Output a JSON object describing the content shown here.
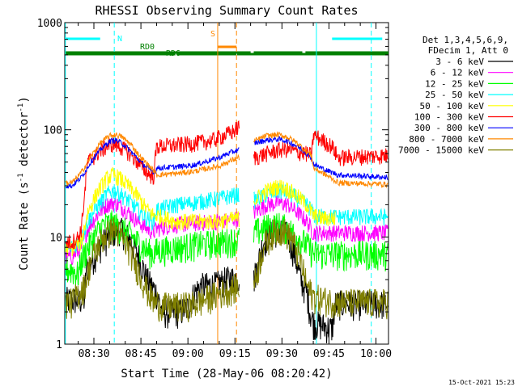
{
  "chart_data": {
    "type": "line",
    "title": "RHESSI Observing Summary Count Rates",
    "xlabel": "Start Time (28-May-06 08:20:42)",
    "ylabel_main": "Count Rate (s",
    "ylabel_sup": "-1",
    "ylabel_tail": " detector",
    "ylabel_sup2": "-1",
    "ylabel_close": ")",
    "y_scale": "log",
    "ylim": [
      1,
      1000
    ],
    "xlim_minutes": [
      20.7,
      124
    ],
    "x_ticks": [
      {
        "label": "08:30",
        "min": 30
      },
      {
        "label": "08:45",
        "min": 45
      },
      {
        "label": "09:00",
        "min": 60
      },
      {
        "label": "09:15",
        "min": 75
      },
      {
        "label": "09:30",
        "min": 90
      },
      {
        "label": "09:45",
        "min": 105
      },
      {
        "label": "10:00",
        "min": 120
      }
    ],
    "y_ticks": [
      {
        "label": "1",
        "value": 1
      },
      {
        "label": "10",
        "value": 10
      },
      {
        "label": "100",
        "value": 100
      },
      {
        "label": "1000",
        "value": 1000
      }
    ],
    "legend_header": [
      "Det 1,3,4,5,6,9,",
      "FDecim 1, Att 0"
    ],
    "footer_timestamp": "15-Oct-2021 15:23",
    "data_gap_min": [
      76.5,
      81
    ],
    "series": [
      {
        "name": "3 - 6 keV",
        "color": "#000000",
        "key": [
          [
            23,
            2.6
          ],
          [
            27,
            2.6
          ],
          [
            27.5,
            5
          ],
          [
            30,
            6.5
          ],
          [
            33,
            9
          ],
          [
            36,
            11
          ],
          [
            38,
            12
          ],
          [
            41,
            10
          ],
          [
            44,
            7
          ],
          [
            47,
            4
          ],
          [
            50,
            3
          ],
          [
            52,
            2
          ],
          [
            57,
            2
          ],
          [
            60,
            2.2
          ],
          [
            62,
            3
          ],
          [
            64,
            3.5
          ],
          [
            69,
            3.6
          ],
          [
            72,
            4
          ],
          [
            76,
            4.2
          ],
          [
            76.5,
            4.2
          ],
          [
            81,
            4
          ],
          [
            84,
            9
          ],
          [
            87,
            11
          ],
          [
            90,
            12
          ],
          [
            92,
            10
          ],
          [
            94,
            7
          ],
          [
            96,
            4
          ],
          [
            98,
            3
          ],
          [
            99,
            2
          ],
          [
            100,
            1.6
          ],
          [
            103,
            1.5
          ],
          [
            106,
            1.4
          ],
          [
            107,
            2.4
          ],
          [
            124,
            2.4
          ]
        ]
      },
      {
        "name": "6 - 12 keV",
        "color": "#ff00ff",
        "key": [
          [
            23,
            6.5
          ],
          [
            26,
            8
          ],
          [
            28,
            12
          ],
          [
            31,
            16
          ],
          [
            34,
            20
          ],
          [
            36,
            21
          ],
          [
            38,
            20
          ],
          [
            41,
            17
          ],
          [
            44,
            14
          ],
          [
            47,
            12
          ],
          [
            49,
            11
          ],
          [
            50,
            12
          ],
          [
            55,
            13
          ],
          [
            62,
            13.5
          ],
          [
            70,
            14
          ],
          [
            76,
            15
          ],
          [
            76.5,
            15
          ],
          [
            81,
            17
          ],
          [
            85,
            20
          ],
          [
            89,
            21
          ],
          [
            92,
            20
          ],
          [
            95,
            17
          ],
          [
            98,
            14
          ],
          [
            100,
            11
          ],
          [
            103,
            11
          ],
          [
            105,
            11
          ],
          [
            107,
            11
          ],
          [
            124,
            11
          ]
        ]
      },
      {
        "name": "12 - 25 keV",
        "color": "#00ff00",
        "key": [
          [
            23,
            5
          ],
          [
            25,
            4.5
          ],
          [
            26,
            6
          ],
          [
            28,
            8
          ],
          [
            31,
            11
          ],
          [
            33,
            13
          ],
          [
            36,
            13.5
          ],
          [
            38,
            12.5
          ],
          [
            41,
            11
          ],
          [
            44,
            9
          ],
          [
            47,
            7.5
          ],
          [
            49,
            7
          ],
          [
            50,
            7.5
          ],
          [
            56,
            8
          ],
          [
            62,
            8.5
          ],
          [
            70,
            9
          ],
          [
            76,
            9.5
          ],
          [
            76.5,
            9.5
          ],
          [
            81,
            11
          ],
          [
            85,
            12.5
          ],
          [
            89,
            13
          ],
          [
            92,
            12
          ],
          [
            95,
            10
          ],
          [
            98,
            8.5
          ],
          [
            100,
            7
          ],
          [
            103,
            7
          ],
          [
            107,
            7
          ],
          [
            124,
            7
          ]
        ]
      },
      {
        "name": "25 - 50 keV",
        "color": "#00ffff",
        "key": [
          [
            23,
            8
          ],
          [
            26,
            9.5
          ],
          [
            28,
            14
          ],
          [
            31,
            19
          ],
          [
            34,
            25
          ],
          [
            36,
            27
          ],
          [
            38,
            26
          ],
          [
            41,
            22
          ],
          [
            44,
            18
          ],
          [
            47,
            15
          ],
          [
            49,
            14
          ],
          [
            50,
            18
          ],
          [
            56,
            20
          ],
          [
            62,
            21
          ],
          [
            70,
            23
          ],
          [
            76,
            25
          ],
          [
            76.5,
            25
          ],
          [
            81,
            22
          ],
          [
            85,
            25
          ],
          [
            89,
            27
          ],
          [
            92,
            26
          ],
          [
            95,
            23
          ],
          [
            98,
            20
          ],
          [
            99.5,
            18
          ],
          [
            100,
            16
          ],
          [
            104,
            15.5
          ],
          [
            108,
            15.5
          ],
          [
            124,
            15.5
          ]
        ]
      },
      {
        "name": "50 - 100 keV",
        "color": "#ffff00",
        "key": [
          [
            23,
            8
          ],
          [
            26,
            9
          ],
          [
            28,
            17
          ],
          [
            31,
            26
          ],
          [
            34,
            35
          ],
          [
            36,
            38
          ],
          [
            38,
            36
          ],
          [
            41,
            30
          ],
          [
            44,
            24
          ],
          [
            47,
            18
          ],
          [
            49,
            16
          ],
          [
            50,
            16
          ],
          [
            56,
            14
          ],
          [
            62,
            14
          ],
          [
            70,
            14
          ],
          [
            76,
            15
          ],
          [
            76.5,
            15
          ],
          [
            81,
            22
          ],
          [
            85,
            27
          ],
          [
            89,
            30
          ],
          [
            92,
            28
          ],
          [
            95,
            24
          ],
          [
            98,
            20
          ],
          [
            100,
            16
          ],
          [
            103,
            15
          ],
          [
            107,
            15
          ]
        ]
      },
      {
        "name": "100 - 300 keV",
        "color": "#ff0000",
        "key": [
          [
            23,
            9
          ],
          [
            25,
            10
          ],
          [
            26,
            12
          ],
          [
            28,
            50
          ],
          [
            31,
            60
          ],
          [
            34,
            70
          ],
          [
            36,
            74
          ],
          [
            38,
            71
          ],
          [
            41,
            62
          ],
          [
            44,
            50
          ],
          [
            47,
            40
          ],
          [
            49,
            36
          ],
          [
            50,
            70
          ],
          [
            56,
            72
          ],
          [
            62,
            75
          ],
          [
            68,
            80
          ],
          [
            72,
            90
          ],
          [
            74,
            95
          ],
          [
            76,
            105
          ],
          [
            76.5,
            105
          ],
          [
            81,
            55
          ],
          [
            85,
            60
          ],
          [
            89,
            65
          ],
          [
            92,
            66
          ],
          [
            95,
            62
          ],
          [
            98,
            60
          ],
          [
            99.5,
            58
          ],
          [
            100,
            90
          ],
          [
            103,
            80
          ],
          [
            106,
            70
          ],
          [
            108,
            55
          ],
          [
            124,
            58
          ]
        ]
      },
      {
        "name": "300 - 800 keV",
        "color": "#0000ff",
        "key": [
          [
            23,
            30
          ],
          [
            26,
            36
          ],
          [
            29,
            50
          ],
          [
            32,
            65
          ],
          [
            35,
            78
          ],
          [
            37,
            80
          ],
          [
            39,
            75
          ],
          [
            42,
            62
          ],
          [
            45,
            50
          ],
          [
            48,
            42
          ],
          [
            49.5,
            40
          ],
          [
            50,
            44
          ],
          [
            56,
            45
          ],
          [
            62,
            47
          ],
          [
            70,
            55
          ],
          [
            74,
            62
          ],
          [
            76,
            65
          ],
          [
            76.5,
            65
          ],
          [
            81,
            75
          ],
          [
            85,
            80
          ],
          [
            89,
            82
          ],
          [
            92,
            78
          ],
          [
            95,
            70
          ],
          [
            98,
            60
          ],
          [
            99.5,
            55
          ],
          [
            100,
            48
          ],
          [
            104,
            42
          ],
          [
            108,
            38
          ],
          [
            124,
            36
          ]
        ]
      },
      {
        "name": "800 - 7000 keV",
        "color": "#ff8800",
        "key": [
          [
            23,
            32
          ],
          [
            26,
            40
          ],
          [
            29,
            56
          ],
          [
            32,
            75
          ],
          [
            35,
            88
          ],
          [
            37,
            90
          ],
          [
            39,
            86
          ],
          [
            42,
            72
          ],
          [
            45,
            55
          ],
          [
            48,
            45
          ],
          [
            49.5,
            40
          ],
          [
            50,
            38
          ],
          [
            56,
            39
          ],
          [
            62,
            41
          ],
          [
            70,
            46
          ],
          [
            74,
            52
          ],
          [
            76,
            55
          ],
          [
            76.5,
            55
          ],
          [
            81,
            78
          ],
          [
            85,
            88
          ],
          [
            89,
            90
          ],
          [
            92,
            85
          ],
          [
            95,
            75
          ],
          [
            98,
            62
          ],
          [
            99.5,
            58
          ],
          [
            100,
            44
          ],
          [
            104,
            38
          ],
          [
            108,
            32
          ],
          [
            124,
            31
          ]
        ]
      },
      {
        "name": "7000 - 15000 keV",
        "color": "#808000",
        "key": [
          [
            23,
            2.5
          ],
          [
            25,
            3
          ],
          [
            27,
            3.5
          ],
          [
            29,
            6
          ],
          [
            31,
            8
          ],
          [
            33,
            10
          ],
          [
            36,
            12
          ],
          [
            38,
            11
          ],
          [
            41,
            8
          ],
          [
            44,
            5
          ],
          [
            47,
            3.2
          ],
          [
            49,
            2.5
          ],
          [
            52,
            2.3
          ],
          [
            58,
            2.3
          ],
          [
            62,
            2.4
          ],
          [
            70,
            3
          ],
          [
            74,
            3.3
          ],
          [
            76,
            3.5
          ],
          [
            76.5,
            3.5
          ],
          [
            81,
            3.5
          ],
          [
            84,
            8
          ],
          [
            87,
            11
          ],
          [
            90,
            12
          ],
          [
            93,
            10
          ],
          [
            96,
            6
          ],
          [
            98,
            3.5
          ],
          [
            100,
            2.8
          ],
          [
            104,
            2.6
          ],
          [
            108,
            2.5
          ],
          [
            124,
            2.5
          ]
        ]
      }
    ],
    "annotations": [
      {
        "text": "N",
        "color": "#00ffff"
      },
      {
        "text": "S",
        "color": "#ff8800"
      },
      {
        "text": "RD0",
        "color": "#008000"
      },
      {
        "text": "RD6",
        "color": "#008000"
      }
    ],
    "bars": [
      {
        "color": "#00ffff",
        "segments": [
          [
            20.7,
            32
          ],
          [
            106,
            122
          ]
        ]
      },
      {
        "color": "#ff8800",
        "segments": [
          [
            69.5,
            75.5
          ]
        ]
      },
      {
        "color": "#008000",
        "segments": [
          [
            20.7,
            80
          ],
          [
            81,
            96.5
          ],
          [
            97.5,
            124
          ]
        ]
      },
      {
        "color": "#008000",
        "segments": [
          [
            20.7,
            56
          ],
          [
            56.5,
            75.5
          ],
          [
            75.7,
            124
          ]
        ]
      }
    ],
    "vlines": [
      {
        "color": "#00ffff",
        "style": "solid",
        "min": 20.9
      },
      {
        "color": "#00ffff",
        "style": "dashed",
        "min": 36.5
      },
      {
        "color": "#00ffff",
        "style": "solid",
        "min": 101
      },
      {
        "color": "#00ffff",
        "style": "dashed",
        "min": 118.5
      },
      {
        "color": "#ff8800",
        "style": "solid",
        "min": 69.5
      },
      {
        "color": "#ff8800",
        "style": "dashed",
        "min": 75.5
      }
    ]
  }
}
